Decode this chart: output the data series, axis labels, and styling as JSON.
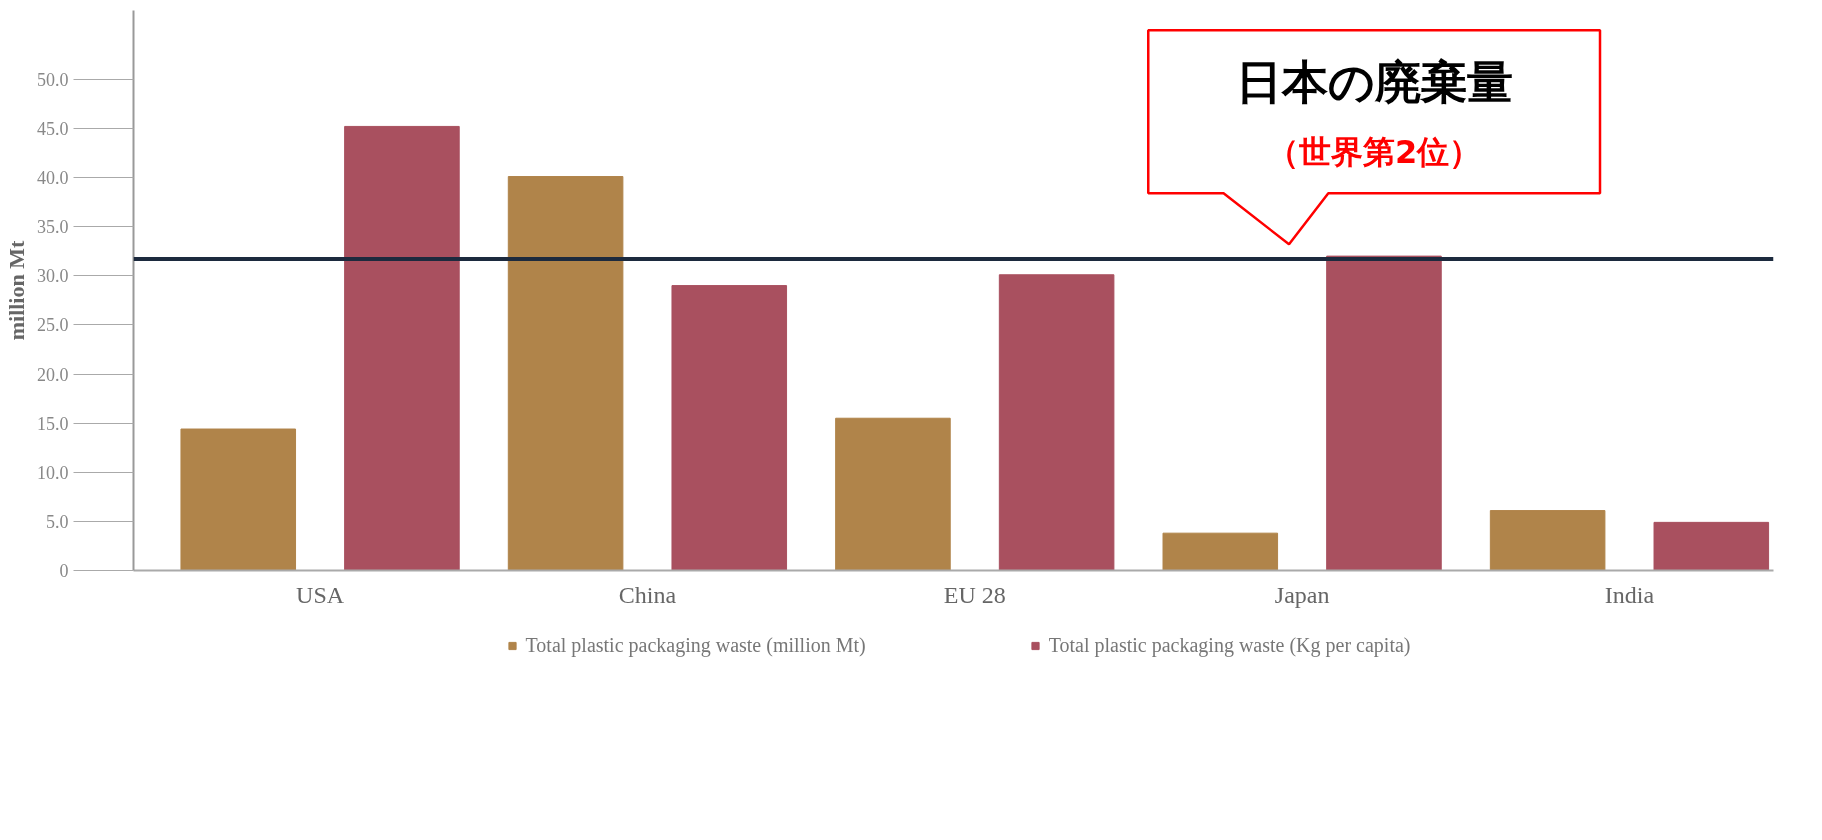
{
  "chart_data": {
    "type": "bar",
    "ylabel": "million Mt",
    "categories": [
      "USA",
      "China",
      "EU 28",
      "Japan",
      "India"
    ],
    "series": [
      {
        "name": "Total plastic packaging waste (million Mt)",
        "color": "#b0844a",
        "values": [
          14.4,
          40.1,
          15.5,
          3.8,
          6.1
        ]
      },
      {
        "name": "Total plastic packaging waste (Kg per capita)",
        "color": "#a9505f",
        "values": [
          45.2,
          29.0,
          30.1,
          32.0,
          4.9
        ]
      }
    ],
    "ylim": [
      0,
      57
    ],
    "yticks": [
      {
        "value": 0,
        "label": "0"
      },
      {
        "value": 5,
        "label": "5.0"
      },
      {
        "value": 10,
        "label": "10.0"
      },
      {
        "value": 15,
        "label": "15.0"
      },
      {
        "value": 20,
        "label": "20.0"
      },
      {
        "value": 25,
        "label": "25.0"
      },
      {
        "value": 30,
        "label": "30.0"
      },
      {
        "value": 35,
        "label": "35.0"
      },
      {
        "value": 40,
        "label": "40.0"
      },
      {
        "value": 45,
        "label": "45.0"
      },
      {
        "value": 50,
        "label": "50.0"
      }
    ],
    "ref_lines": [
      {
        "axis": "y",
        "value": 31.7,
        "label": null,
        "color": "#1c2a3e"
      }
    ],
    "annotations": [
      "日本の廃棄量",
      "（世界第2位）"
    ],
    "grid": false,
    "legend": "bottom"
  }
}
